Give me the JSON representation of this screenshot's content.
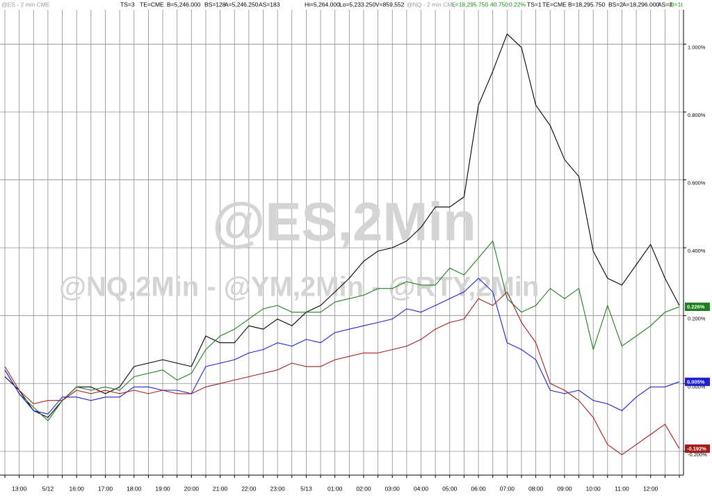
{
  "header": [
    "@ES - 2 min CME",
    "TS=3",
    "TE=CME",
    "B=5,246.000",
    "BS=128",
    "A=5,246.250",
    "AS=183",
    "Hi=5,264.000",
    "Lo=5,233.250",
    "V=859,552",
    "@NQ - 2 min CME",
    "L=18,295.750",
    "40.750",
    "0.22%",
    "TS=1",
    "TE=CME",
    "B=18,295.750",
    "BS=2",
    "A=18,296.000",
    "AS=3",
    "O=1t"
  ],
  "watermarks": [
    "@ES,2Min",
    "@NQ,2Min - @YM,2Min - @RTY,2Min"
  ],
  "chart_data": {
    "type": "line",
    "categories": [
      null,
      "13:00",
      null,
      "5/12",
      null,
      "16:00",
      null,
      "17:00",
      null,
      "18:00",
      null,
      "19:00",
      null,
      "20:00",
      null,
      "21:00",
      null,
      "22:00",
      null,
      "23:00",
      null,
      "5/13",
      null,
      "01:00",
      null,
      "02:00",
      null,
      "03:00",
      null,
      "04:00",
      null,
      "05:00",
      null,
      "06:00",
      null,
      "07:00",
      null,
      "08:00",
      null,
      "09:00",
      null,
      "10:00",
      null,
      "11:00",
      null,
      "12:00",
      null,
      null
    ],
    "series": [
      {
        "color": "#000000",
        "values": [
          0.02,
          -0.02,
          -0.08,
          -0.1,
          -0.05,
          -0.01,
          -0.01,
          -0.03,
          -0.01,
          0.05,
          0.06,
          0.07,
          0.06,
          0.05,
          0.14,
          0.12,
          0.12,
          0.17,
          0.16,
          0.19,
          0.17,
          0.21,
          0.23,
          0.27,
          0.31,
          0.36,
          0.39,
          0.4,
          0.42,
          0.46,
          0.52,
          0.52,
          0.55,
          0.82,
          0.92,
          1.03,
          0.99,
          0.82,
          0.76,
          0.66,
          0.61,
          0.39,
          0.31,
          0.29,
          0.35,
          0.41,
          0.31,
          0.23
        ]
      },
      {
        "color": "#1e7d1e",
        "values": [
          0.04,
          -0.03,
          -0.07,
          -0.11,
          -0.05,
          -0.01,
          -0.02,
          -0.01,
          -0.02,
          0.02,
          0.03,
          0.04,
          0.01,
          0.03,
          0.1,
          0.14,
          0.16,
          0.19,
          0.22,
          0.23,
          0.21,
          0.21,
          0.21,
          0.24,
          0.25,
          0.26,
          0.28,
          0.28,
          0.3,
          0.29,
          0.29,
          0.34,
          0.32,
          0.37,
          0.42,
          0.25,
          0.21,
          0.23,
          0.28,
          0.25,
          0.28,
          0.1,
          0.23,
          0.11,
          0.14,
          0.17,
          0.21,
          0.226
        ],
        "value_labels": [
          null,
          null,
          null,
          null,
          null,
          null,
          null,
          null,
          null,
          null,
          null,
          null,
          null,
          null,
          null,
          null,
          null,
          null,
          null,
          null,
          null,
          null,
          null,
          null,
          null,
          null,
          null,
          null,
          null,
          null,
          null,
          null,
          null,
          null,
          null,
          null,
          null,
          null,
          null,
          null,
          null,
          null,
          null,
          null,
          null,
          null,
          null,
          "0.226%"
        ]
      },
      {
        "color": "#1f1fd0",
        "values": [
          0.04,
          -0.03,
          -0.08,
          -0.09,
          -0.04,
          -0.04,
          -0.05,
          -0.04,
          -0.04,
          -0.01,
          -0.01,
          -0.02,
          -0.02,
          -0.03,
          0.05,
          0.06,
          0.07,
          0.09,
          0.1,
          0.12,
          0.11,
          0.13,
          0.12,
          0.15,
          0.16,
          0.17,
          0.18,
          0.19,
          0.22,
          0.21,
          0.23,
          0.25,
          0.27,
          0.31,
          0.27,
          0.12,
          0.1,
          0.07,
          -0.02,
          -0.03,
          -0.02,
          -0.05,
          -0.06,
          -0.08,
          -0.04,
          -0.01,
          -0.01,
          0.005
        ],
        "value_labels": [
          null,
          null,
          null,
          null,
          null,
          null,
          null,
          null,
          null,
          null,
          null,
          null,
          null,
          null,
          null,
          null,
          null,
          null,
          null,
          null,
          null,
          null,
          null,
          null,
          null,
          null,
          null,
          null,
          null,
          null,
          null,
          null,
          null,
          null,
          null,
          null,
          null,
          null,
          null,
          null,
          null,
          null,
          null,
          null,
          null,
          null,
          null,
          "0.005%"
        ]
      },
      {
        "color": "#a11d1d",
        "values": [
          0.05,
          -0.02,
          -0.06,
          -0.05,
          -0.05,
          -0.02,
          -0.03,
          -0.02,
          -0.03,
          -0.02,
          -0.03,
          -0.02,
          -0.03,
          -0.03,
          -0.01,
          0.0,
          0.01,
          0.02,
          0.03,
          0.04,
          0.06,
          0.05,
          0.05,
          0.07,
          0.08,
          0.09,
          0.09,
          0.1,
          0.11,
          0.13,
          0.16,
          0.18,
          0.19,
          0.25,
          0.23,
          0.27,
          0.18,
          0.12,
          0.0,
          -0.02,
          -0.05,
          -0.1,
          -0.18,
          -0.21,
          -0.18,
          -0.15,
          -0.12,
          -0.192
        ],
        "value_labels": [
          null,
          null,
          null,
          null,
          null,
          null,
          null,
          null,
          null,
          null,
          null,
          null,
          null,
          null,
          null,
          null,
          null,
          null,
          null,
          null,
          null,
          null,
          null,
          null,
          null,
          null,
          null,
          null,
          null,
          null,
          null,
          null,
          null,
          null,
          null,
          null,
          null,
          null,
          null,
          null,
          null,
          null,
          null,
          null,
          null,
          null,
          null,
          "-0.192%"
        ]
      }
    ],
    "ylim": [
      -0.27,
      1.13
    ],
    "yticks": [
      {
        "value": -0.2,
        "label": "-0.200%"
      },
      {
        "value": 0,
        "label": "0.000%"
      },
      {
        "value": 0.2,
        "label": "0.200%"
      },
      {
        "value": 0.4,
        "label": "0.400%"
      },
      {
        "value": 0.6,
        "label": "0.600%"
      },
      {
        "value": 0.8,
        "label": "0.800%"
      },
      {
        "value": 1.0,
        "label": "1.000%"
      }
    ],
    "grid": true,
    "y_axis_side": "right"
  }
}
